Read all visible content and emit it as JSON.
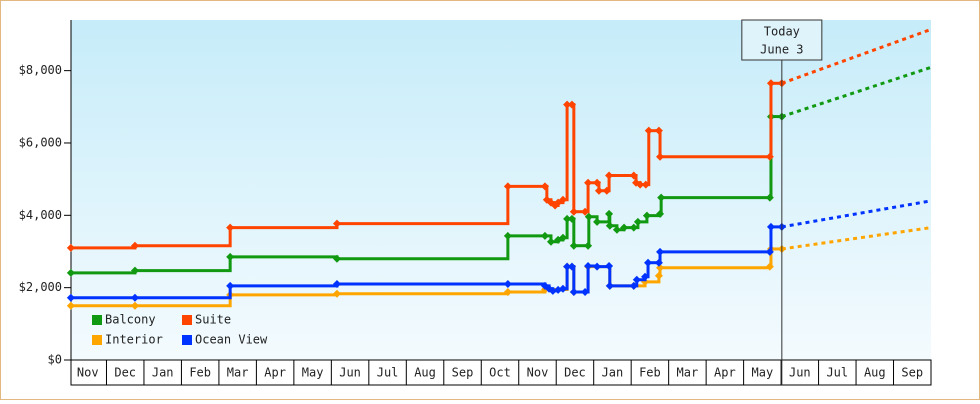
{
  "chart_data": {
    "type": "line",
    "step": true,
    "xlim": [
      0,
      23
    ],
    "xticks": [
      {
        "value": 0.5,
        "label": "Nov"
      },
      {
        "value": 1.5,
        "label": "Dec"
      },
      {
        "value": 2.5,
        "label": "Jan"
      },
      {
        "value": 3.5,
        "label": "Feb"
      },
      {
        "value": 4.5,
        "label": "Mar"
      },
      {
        "value": 5.5,
        "label": "Apr"
      },
      {
        "value": 6.5,
        "label": "May"
      },
      {
        "value": 7.5,
        "label": "Jun"
      },
      {
        "value": 8.5,
        "label": "Jul"
      },
      {
        "value": 9.5,
        "label": "Aug"
      },
      {
        "value": 10.5,
        "label": "Sep"
      },
      {
        "value": 11.5,
        "label": "Oct"
      },
      {
        "value": 12.5,
        "label": "Nov"
      },
      {
        "value": 13.5,
        "label": "Dec"
      },
      {
        "value": 14.5,
        "label": "Jan"
      },
      {
        "value": 15.5,
        "label": "Feb"
      },
      {
        "value": 16.5,
        "label": "Mar"
      },
      {
        "value": 17.5,
        "label": "Apr"
      },
      {
        "value": 18.5,
        "label": "May"
      },
      {
        "value": 19.5,
        "label": "Jun"
      },
      {
        "value": 20.5,
        "label": "Jul"
      },
      {
        "value": 21.5,
        "label": "Aug"
      },
      {
        "value": 22.5,
        "label": "Sep"
      }
    ],
    "ylim": [
      0,
      9400
    ],
    "yticks": [
      {
        "value": 0,
        "label": "$0"
      },
      {
        "value": 2000,
        "label": "$2,000"
      },
      {
        "value": 4000,
        "label": "$4,000"
      },
      {
        "value": 6000,
        "label": "$6,000"
      },
      {
        "value": 8000,
        "label": "$8,000"
      }
    ],
    "annotation": {
      "x": 19.02,
      "lines": [
        "Today",
        "June 3"
      ]
    },
    "legend": "bottom-left",
    "series": [
      {
        "name": "Balcony",
        "color": "#119911",
        "x": [
          0.05,
          1.76,
          4.3,
          7.15,
          11.71,
          12.7,
          12.86,
          13.05,
          13.18,
          13.29,
          13.42,
          13.47,
          13.85,
          13.87,
          14.09,
          14.41,
          14.43,
          14.62,
          14.81,
          15.07,
          15.18,
          15.42,
          15.77,
          15.8,
          18.7,
          18.73,
          19.02
        ],
        "values": [
          2410,
          2470,
          2850,
          2800,
          3430,
          3430,
          3270,
          3320,
          3380,
          3900,
          3900,
          3160,
          3160,
          3960,
          3820,
          4040,
          3710,
          3600,
          3660,
          3660,
          3820,
          3990,
          4040,
          4490,
          4490,
          6730,
          6730
        ],
        "projection_end": 8090
      },
      {
        "name": "Suite",
        "color": "#ff4400",
        "x": [
          0.05,
          1.76,
          4.3,
          7.15,
          11.71,
          12.7,
          12.75,
          12.86,
          12.97,
          13.05,
          13.18,
          13.29,
          13.42,
          13.47,
          13.77,
          13.85,
          14.09,
          14.14,
          14.35,
          14.41,
          15.07,
          15.13,
          15.24,
          15.39,
          15.47,
          15.74,
          15.77,
          18.7,
          18.73,
          19.02
        ],
        "values": [
          3100,
          3160,
          3660,
          3770,
          4800,
          4800,
          4430,
          4350,
          4270,
          4350,
          4430,
          7060,
          7060,
          4100,
          4100,
          4900,
          4900,
          4680,
          4680,
          5100,
          5100,
          4900,
          4850,
          4850,
          6340,
          6340,
          5620,
          5620,
          7650,
          7650
        ],
        "projection_end": 9140
      },
      {
        "name": "Interior",
        "color": "#ffa500",
        "x": [
          0.05,
          1.76,
          4.3,
          7.15,
          11.71,
          12.7,
          13.29,
          13.42,
          13.47,
          13.85,
          14.43,
          15.07,
          15.37,
          15.74,
          15.77,
          18.7,
          18.73,
          19.02
        ],
        "values": [
          1500,
          1500,
          1800,
          1830,
          1880,
          1950,
          2580,
          2580,
          1880,
          2580,
          2050,
          2050,
          2160,
          2330,
          2550,
          2580,
          3070,
          3070
        ],
        "projection_end": 3660
      },
      {
        "name": "Ocean View",
        "color": "#0033ff",
        "x": [
          0.05,
          1.76,
          4.3,
          7.15,
          11.71,
          12.7,
          12.81,
          12.91,
          13.05,
          13.18,
          13.29,
          13.42,
          13.47,
          13.77,
          13.85,
          14.09,
          14.41,
          14.43,
          15.07,
          15.15,
          15.37,
          15.45,
          15.74,
          15.77,
          18.7,
          18.73,
          19.02
        ],
        "values": [
          1720,
          1720,
          2050,
          2100,
          2100,
          2050,
          1970,
          1910,
          1940,
          1970,
          2580,
          2580,
          1880,
          1880,
          2600,
          2580,
          2600,
          2050,
          2050,
          2220,
          2300,
          2690,
          2690,
          2990,
          2990,
          3680,
          3680
        ],
        "projection_end": 4400
      }
    ]
  }
}
